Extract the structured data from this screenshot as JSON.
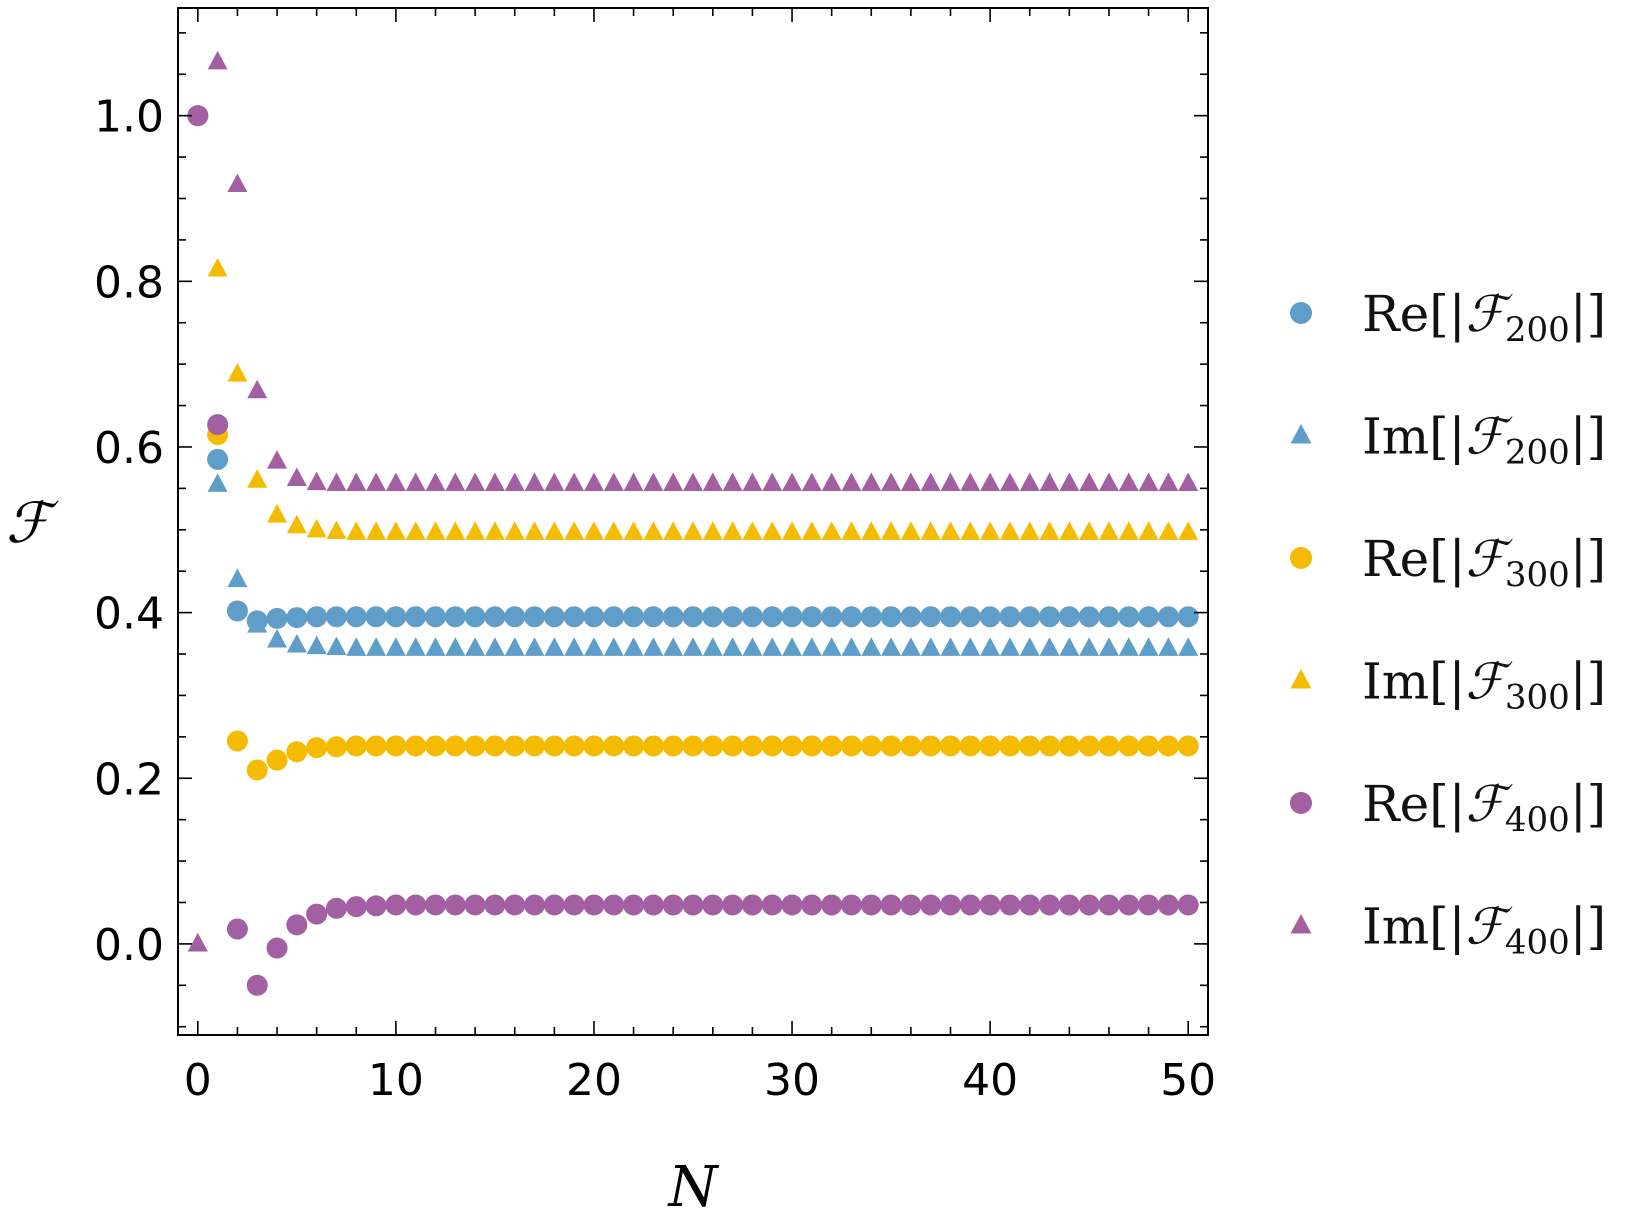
{
  "chart_data": {
    "type": "scatter",
    "title": "",
    "xlabel": "N",
    "ylabel": "ℱ",
    "xlim": [
      -1,
      51
    ],
    "ylim": [
      -0.11,
      1.13
    ],
    "xticks": [
      0,
      10,
      20,
      30,
      40,
      50
    ],
    "yticks": [
      0.0,
      0.2,
      0.4,
      0.6,
      0.8,
      1.0
    ],
    "xtick_labels": [
      "0",
      "10",
      "20",
      "30",
      "40",
      "50"
    ],
    "ytick_labels": [
      "0.0",
      "0.2",
      "0.4",
      "0.6",
      "0.8",
      "1.0"
    ],
    "grid": false,
    "legend_position": "right",
    "series": [
      {
        "key": "re200",
        "name": "Re[|ℱ200|]",
        "part": "Re",
        "sub": "200",
        "marker": "circle",
        "color": "#5e9ec8",
        "x": [
          0,
          1,
          2,
          3,
          4,
          5,
          6,
          7,
          8,
          9,
          10,
          11,
          12,
          13,
          14,
          15,
          16,
          17,
          18,
          19,
          20,
          21,
          22,
          23,
          24,
          25,
          26,
          27,
          28,
          29,
          30,
          31,
          32,
          33,
          34,
          35,
          36,
          37,
          38,
          39,
          40,
          41,
          42,
          43,
          44,
          45,
          46,
          47,
          48,
          49,
          50
        ],
        "y": [
          1.0,
          0.585,
          0.402,
          0.39,
          0.393,
          0.394,
          0.395,
          0.395,
          0.395,
          0.395,
          0.395,
          0.395,
          0.395,
          0.395,
          0.395,
          0.395,
          0.395,
          0.395,
          0.395,
          0.395,
          0.395,
          0.395,
          0.395,
          0.395,
          0.395,
          0.395,
          0.395,
          0.395,
          0.395,
          0.395,
          0.395,
          0.395,
          0.395,
          0.395,
          0.395,
          0.395,
          0.395,
          0.395,
          0.395,
          0.395,
          0.395,
          0.395,
          0.395,
          0.395,
          0.395,
          0.395,
          0.395,
          0.395,
          0.395,
          0.395,
          0.395
        ]
      },
      {
        "key": "im200",
        "name": "Im[|ℱ200|]",
        "part": "Im",
        "sub": "200",
        "marker": "triangle",
        "color": "#5e9ec8",
        "x": [
          0,
          1,
          2,
          3,
          4,
          5,
          6,
          7,
          8,
          9,
          10,
          11,
          12,
          13,
          14,
          15,
          16,
          17,
          18,
          19,
          20,
          21,
          22,
          23,
          24,
          25,
          26,
          27,
          28,
          29,
          30,
          31,
          32,
          33,
          34,
          35,
          36,
          37,
          38,
          39,
          40,
          41,
          42,
          43,
          44,
          45,
          46,
          47,
          48,
          49,
          50
        ],
        "y": [
          0.0,
          0.555,
          0.44,
          0.385,
          0.367,
          0.361,
          0.359,
          0.358,
          0.357,
          0.357,
          0.357,
          0.357,
          0.357,
          0.357,
          0.357,
          0.357,
          0.357,
          0.357,
          0.357,
          0.357,
          0.357,
          0.357,
          0.357,
          0.357,
          0.357,
          0.357,
          0.357,
          0.357,
          0.357,
          0.357,
          0.357,
          0.357,
          0.357,
          0.357,
          0.357,
          0.357,
          0.357,
          0.357,
          0.357,
          0.357,
          0.357,
          0.357,
          0.357,
          0.357,
          0.357,
          0.357,
          0.357,
          0.357,
          0.357,
          0.357,
          0.357
        ]
      },
      {
        "key": "re300",
        "name": "Re[|ℱ300|]",
        "part": "Re",
        "sub": "300",
        "marker": "circle",
        "color": "#f5bb00",
        "x": [
          0,
          1,
          2,
          3,
          4,
          5,
          6,
          7,
          8,
          9,
          10,
          11,
          12,
          13,
          14,
          15,
          16,
          17,
          18,
          19,
          20,
          21,
          22,
          23,
          24,
          25,
          26,
          27,
          28,
          29,
          30,
          31,
          32,
          33,
          34,
          35,
          36,
          37,
          38,
          39,
          40,
          41,
          42,
          43,
          44,
          45,
          46,
          47,
          48,
          49,
          50
        ],
        "y": [
          1.0,
          0.615,
          0.245,
          0.21,
          0.222,
          0.232,
          0.237,
          0.238,
          0.239,
          0.239,
          0.239,
          0.239,
          0.239,
          0.239,
          0.239,
          0.239,
          0.239,
          0.239,
          0.239,
          0.239,
          0.239,
          0.239,
          0.239,
          0.239,
          0.239,
          0.239,
          0.239,
          0.239,
          0.239,
          0.239,
          0.239,
          0.239,
          0.239,
          0.239,
          0.239,
          0.239,
          0.239,
          0.239,
          0.239,
          0.239,
          0.239,
          0.239,
          0.239,
          0.239,
          0.239,
          0.239,
          0.239,
          0.239,
          0.239,
          0.239,
          0.239
        ]
      },
      {
        "key": "im300",
        "name": "Im[|ℱ300|]",
        "part": "Im",
        "sub": "300",
        "marker": "triangle",
        "color": "#f5bb00",
        "x": [
          0,
          1,
          2,
          3,
          4,
          5,
          6,
          7,
          8,
          9,
          10,
          11,
          12,
          13,
          14,
          15,
          16,
          17,
          18,
          19,
          20,
          21,
          22,
          23,
          24,
          25,
          26,
          27,
          28,
          29,
          30,
          31,
          32,
          33,
          34,
          35,
          36,
          37,
          38,
          39,
          40,
          41,
          42,
          43,
          44,
          45,
          46,
          47,
          48,
          49,
          50
        ],
        "y": [
          0.0,
          0.815,
          0.688,
          0.56,
          0.518,
          0.505,
          0.5,
          0.498,
          0.497,
          0.497,
          0.497,
          0.497,
          0.497,
          0.497,
          0.497,
          0.497,
          0.497,
          0.497,
          0.497,
          0.497,
          0.497,
          0.497,
          0.497,
          0.497,
          0.497,
          0.497,
          0.497,
          0.497,
          0.497,
          0.497,
          0.497,
          0.497,
          0.497,
          0.497,
          0.497,
          0.497,
          0.497,
          0.497,
          0.497,
          0.497,
          0.497,
          0.497,
          0.497,
          0.497,
          0.497,
          0.497,
          0.497,
          0.497,
          0.497,
          0.497,
          0.497
        ]
      },
      {
        "key": "re400",
        "name": "Re[|ℱ400|]",
        "part": "Re",
        "sub": "400",
        "marker": "circle",
        "color": "#a25fa2",
        "x": [
          0,
          1,
          2,
          3,
          4,
          5,
          6,
          7,
          8,
          9,
          10,
          11,
          12,
          13,
          14,
          15,
          16,
          17,
          18,
          19,
          20,
          21,
          22,
          23,
          24,
          25,
          26,
          27,
          28,
          29,
          30,
          31,
          32,
          33,
          34,
          35,
          36,
          37,
          38,
          39,
          40,
          41,
          42,
          43,
          44,
          45,
          46,
          47,
          48,
          49,
          50
        ],
        "y": [
          1.0,
          0.627,
          0.018,
          -0.05,
          -0.005,
          0.023,
          0.036,
          0.043,
          0.045,
          0.046,
          0.047,
          0.047,
          0.047,
          0.047,
          0.047,
          0.047,
          0.047,
          0.047,
          0.047,
          0.047,
          0.047,
          0.047,
          0.047,
          0.047,
          0.047,
          0.047,
          0.047,
          0.047,
          0.047,
          0.047,
          0.047,
          0.047,
          0.047,
          0.047,
          0.047,
          0.047,
          0.047,
          0.047,
          0.047,
          0.047,
          0.047,
          0.047,
          0.047,
          0.047,
          0.047,
          0.047,
          0.047,
          0.047,
          0.047,
          0.047,
          0.047
        ]
      },
      {
        "key": "im400",
        "name": "Im[|ℱ400|]",
        "part": "Im",
        "sub": "400",
        "marker": "triangle",
        "color": "#a25fa2",
        "x": [
          0,
          1,
          2,
          3,
          4,
          5,
          6,
          7,
          8,
          9,
          10,
          11,
          12,
          13,
          14,
          15,
          16,
          17,
          18,
          19,
          20,
          21,
          22,
          23,
          24,
          25,
          26,
          27,
          28,
          29,
          30,
          31,
          32,
          33,
          34,
          35,
          36,
          37,
          38,
          39,
          40,
          41,
          42,
          43,
          44,
          45,
          46,
          47,
          48,
          49,
          50
        ],
        "y": [
          0.0,
          1.065,
          0.917,
          0.668,
          0.583,
          0.562,
          0.557,
          0.556,
          0.556,
          0.556,
          0.556,
          0.556,
          0.556,
          0.556,
          0.556,
          0.556,
          0.556,
          0.556,
          0.556,
          0.556,
          0.556,
          0.556,
          0.556,
          0.556,
          0.556,
          0.556,
          0.556,
          0.556,
          0.556,
          0.556,
          0.556,
          0.556,
          0.556,
          0.556,
          0.556,
          0.556,
          0.556,
          0.556,
          0.556,
          0.556,
          0.556,
          0.556,
          0.556,
          0.556,
          0.556,
          0.556,
          0.556,
          0.556,
          0.556,
          0.556,
          0.556
        ]
      }
    ]
  }
}
